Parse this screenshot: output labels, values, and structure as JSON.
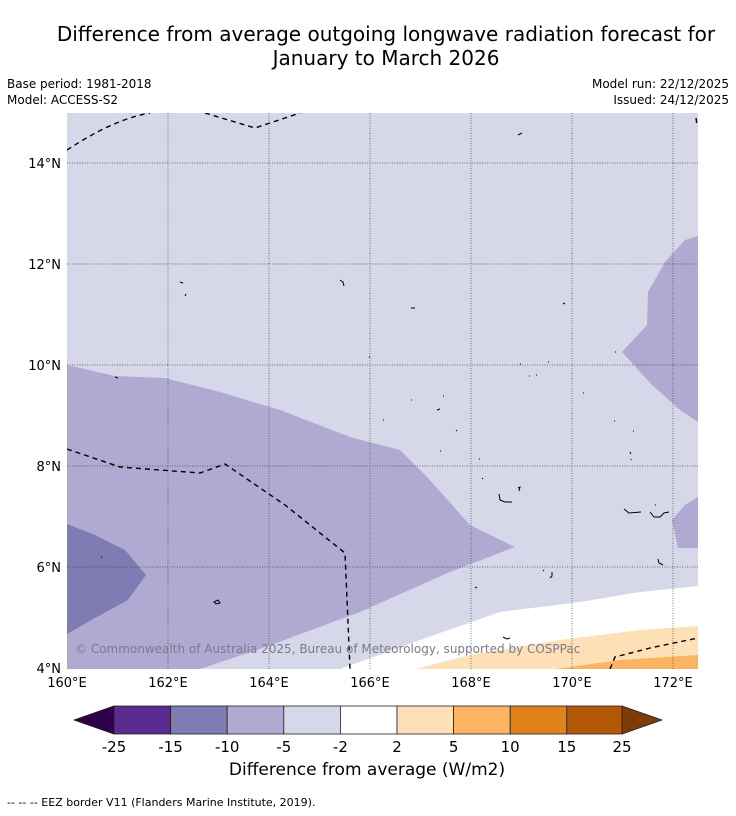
{
  "title": {
    "line1": "Difference from average outgoing longwave radiation forecast for",
    "line2": "January to March 2026"
  },
  "meta": {
    "base_period": "Base period: 1981-2018",
    "model": "Model: ACCESS-S2",
    "model_run": "Model run: 22/12/2025",
    "issued": "Issued: 24/12/2025"
  },
  "map": {
    "lat_labels": [
      "14°N",
      "12°N",
      "10°N",
      "8°N",
      "6°N",
      "4°N"
    ],
    "lon_labels": [
      "160°E",
      "162°E",
      "164°E",
      "166°E",
      "168°E",
      "170°E",
      "172°E"
    ],
    "copyright": "© Commonwealth of Australia 2025, Bureau of Meteorology, supported by COSPPac",
    "colors": {
      "neg_15_10": "#807bb2",
      "neg_10_5": "#b0aad3",
      "neg_5_2": "#d7d7ea",
      "neutral": "#ffffff",
      "pos_2_5": "#fee0b6",
      "pos_5_10": "#fbb562"
    }
  },
  "colorbar": {
    "ticks": [
      "-25",
      "-15",
      "-10",
      "-5",
      "-2",
      "2",
      "5",
      "10",
      "15",
      "25"
    ],
    "colors": [
      "#2d004b",
      "#5b2a8f",
      "#807bb2",
      "#b0aad3",
      "#d7d7ea",
      "#ffffff",
      "#fee0b6",
      "#fbb562",
      "#e0821b",
      "#b35806",
      "#7f3b08"
    ],
    "title": "Difference from average (W/m2)"
  },
  "footnote": "--  --  -- EEZ border V11 (Flanders Marine Institute, 2019)."
}
